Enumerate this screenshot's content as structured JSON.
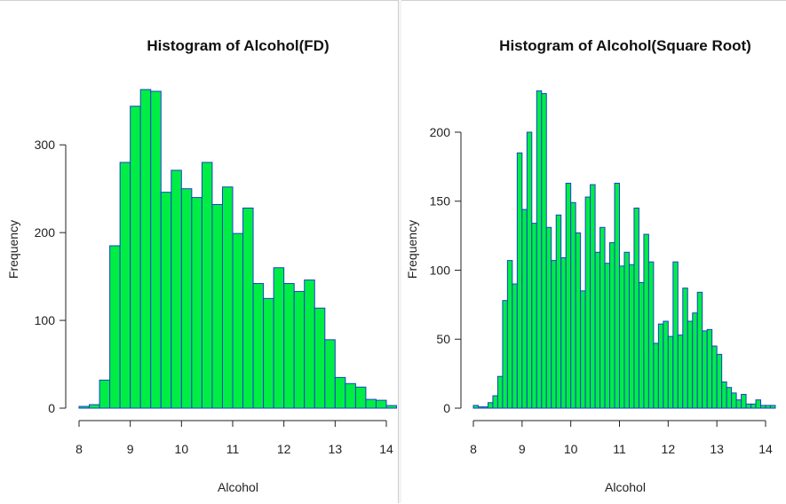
{
  "chart_data": [
    {
      "type": "histogram",
      "title": "Histogram of Alcohol(FD)",
      "xlabel": "Alcohol",
      "ylabel": "Frequency",
      "xlim": [
        8,
        14.2
      ],
      "ylim": [
        0,
        370
      ],
      "xticks": [
        8,
        9,
        10,
        11,
        12,
        13,
        14
      ],
      "yticks": [
        0,
        100,
        200,
        300
      ],
      "bin_width": 0.2,
      "bin_start": 8.0,
      "counts": [
        2,
        4,
        32,
        185,
        280,
        344,
        363,
        361,
        246,
        271,
        250,
        240,
        280,
        232,
        252,
        199,
        228,
        142,
        125,
        160,
        142,
        133,
        146,
        114,
        78,
        35,
        28,
        24,
        10,
        9,
        3
      ],
      "bar_color": "#00ee44",
      "edge_color": "#1a3fd0"
    },
    {
      "type": "histogram",
      "title": "Histogram of Alcohol(Square Root)",
      "xlabel": "Alcohol",
      "ylabel": "Frequency",
      "xlim": [
        8,
        14.2
      ],
      "ylim": [
        0,
        235
      ],
      "xticks": [
        8,
        9,
        10,
        11,
        12,
        13,
        14
      ],
      "yticks": [
        0,
        50,
        100,
        150,
        200
      ],
      "bin_width": 0.1,
      "bin_start": 8.0,
      "counts": [
        2,
        0,
        0,
        4,
        9,
        23,
        78,
        107,
        90,
        185,
        144,
        200,
        134,
        230,
        228,
        131,
        107,
        140,
        109,
        163,
        149,
        127,
        85,
        153,
        162,
        113,
        131,
        105,
        120,
        163,
        103,
        113,
        104,
        145,
        91,
        126,
        106,
        47,
        61,
        63,
        52,
        106,
        53,
        87,
        63,
        69,
        84,
        56,
        57,
        45,
        39,
        19,
        15,
        11,
        6,
        10,
        3,
        3,
        6,
        2,
        2,
        2
      ],
      "bar_color": "#00ee44",
      "edge_color": "#1a3fd0"
    }
  ]
}
